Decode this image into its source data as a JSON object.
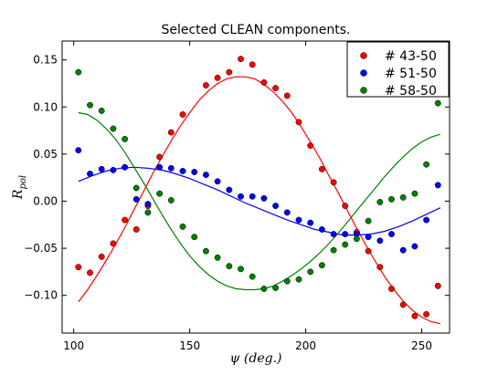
{
  "chart_data": {
    "type": "scatter",
    "title": "Selected CLEAN components.",
    "xlabel": "ψ (deg.)",
    "ylabel_main": "R",
    "ylabel_sub": "pol",
    "xlim": [
      95,
      262
    ],
    "ylim": [
      -0.14,
      0.17
    ],
    "xticks": [
      100,
      150,
      200,
      250
    ],
    "xtick_labels": [
      "100",
      "150",
      "200",
      "250"
    ],
    "yticks": [
      -0.1,
      -0.05,
      0.0,
      0.05,
      0.1,
      0.15
    ],
    "ytick_labels": [
      "−0.10",
      "−0.05",
      "0.00",
      "0.05",
      "0.10",
      "0.15"
    ],
    "legend_position": "top-right",
    "grid": false,
    "series": [
      {
        "name": "# 43-50",
        "color": "#ff0000",
        "points": [
          [
            102,
            -0.07
          ],
          [
            107,
            -0.076
          ],
          [
            112,
            -0.059
          ],
          [
            117,
            -0.045
          ],
          [
            122,
            -0.02
          ],
          [
            127,
            -0.03
          ],
          [
            132,
            -0.005
          ],
          [
            137,
            0.047
          ],
          [
            142,
            0.073
          ],
          [
            147,
            0.092
          ],
          [
            157,
            0.123
          ],
          [
            162,
            0.131
          ],
          [
            167,
            0.137
          ],
          [
            172,
            0.151
          ],
          [
            177,
            0.145
          ],
          [
            182,
            0.126
          ],
          [
            187,
            0.12
          ],
          [
            192,
            0.112
          ],
          [
            197,
            0.084
          ],
          [
            202,
            0.059
          ],
          [
            207,
            0.034
          ],
          [
            212,
            0.02
          ],
          [
            217,
            -0.005
          ],
          [
            222,
            -0.033
          ],
          [
            227,
            -0.053
          ],
          [
            232,
            -0.07
          ],
          [
            237,
            -0.093
          ],
          [
            242,
            -0.11
          ],
          [
            247,
            -0.122
          ],
          [
            252,
            -0.12
          ],
          [
            257,
            -0.09
          ]
        ],
        "fit": [
          [
            102,
            -0.107
          ],
          [
            106,
            -0.094
          ],
          [
            110,
            -0.079
          ],
          [
            114,
            -0.063
          ],
          [
            118,
            -0.046
          ],
          [
            122,
            -0.028
          ],
          [
            126,
            -0.009
          ],
          [
            130,
            0.01
          ],
          [
            134,
            0.029
          ],
          [
            138,
            0.047
          ],
          [
            142,
            0.064
          ],
          [
            146,
            0.08
          ],
          [
            150,
            0.094
          ],
          [
            154,
            0.107
          ],
          [
            158,
            0.117
          ],
          [
            162,
            0.125
          ],
          [
            166,
            0.13
          ],
          [
            170,
            0.132
          ],
          [
            174,
            0.132
          ],
          [
            178,
            0.13
          ],
          [
            182,
            0.124
          ],
          [
            186,
            0.116
          ],
          [
            190,
            0.106
          ],
          [
            194,
            0.094
          ],
          [
            198,
            0.079
          ],
          [
            202,
            0.063
          ],
          [
            206,
            0.046
          ],
          [
            210,
            0.027
          ],
          [
            214,
            0.009
          ],
          [
            218,
            -0.01
          ],
          [
            222,
            -0.029
          ],
          [
            226,
            -0.047
          ],
          [
            230,
            -0.064
          ],
          [
            234,
            -0.08
          ],
          [
            238,
            -0.094
          ],
          [
            242,
            -0.106
          ],
          [
            246,
            -0.116
          ],
          [
            250,
            -0.123
          ],
          [
            254,
            -0.128
          ],
          [
            258,
            -0.13
          ]
        ]
      },
      {
        "name": "# 51-50",
        "color": "#0000ff",
        "points": [
          [
            102,
            0.054
          ],
          [
            107,
            0.029
          ],
          [
            112,
            0.034
          ],
          [
            117,
            0.033
          ],
          [
            122,
            0.036
          ],
          [
            127,
            0.002
          ],
          [
            132,
            -0.003
          ],
          [
            137,
            0.036
          ],
          [
            142,
            0.035
          ],
          [
            147,
            0.032
          ],
          [
            152,
            0.031
          ],
          [
            157,
            0.028
          ],
          [
            162,
            0.021
          ],
          [
            167,
            0.012
          ],
          [
            172,
            0.005
          ],
          [
            177,
            0.005
          ],
          [
            182,
            0.003
          ],
          [
            187,
            -0.005
          ],
          [
            192,
            -0.012
          ],
          [
            197,
            -0.02
          ],
          [
            202,
            -0.023
          ],
          [
            207,
            -0.03
          ],
          [
            212,
            -0.035
          ],
          [
            217,
            -0.035
          ],
          [
            222,
            -0.035
          ],
          [
            227,
            -0.038
          ],
          [
            232,
            -0.042
          ],
          [
            237,
            -0.035
          ],
          [
            242,
            -0.052
          ],
          [
            247,
            -0.048
          ],
          [
            252,
            -0.02
          ],
          [
            257,
            0.017
          ]
        ],
        "fit": [
          [
            102,
            0.021
          ],
          [
            108,
            0.027
          ],
          [
            114,
            0.032
          ],
          [
            120,
            0.035
          ],
          [
            126,
            0.036
          ],
          [
            132,
            0.035
          ],
          [
            138,
            0.033
          ],
          [
            144,
            0.029
          ],
          [
            150,
            0.024
          ],
          [
            156,
            0.018
          ],
          [
            162,
            0.012
          ],
          [
            168,
            0.005
          ],
          [
            174,
            -0.002
          ],
          [
            180,
            -0.008
          ],
          [
            186,
            -0.014
          ],
          [
            192,
            -0.02
          ],
          [
            198,
            -0.025
          ],
          [
            204,
            -0.03
          ],
          [
            210,
            -0.033
          ],
          [
            216,
            -0.036
          ],
          [
            222,
            -0.036
          ],
          [
            228,
            -0.035
          ],
          [
            234,
            -0.032
          ],
          [
            240,
            -0.027
          ],
          [
            246,
            -0.021
          ],
          [
            252,
            -0.014
          ],
          [
            258,
            -0.007
          ]
        ]
      },
      {
        "name": "# 58-50",
        "color": "#008000",
        "points": [
          [
            102,
            0.137
          ],
          [
            107,
            0.102
          ],
          [
            112,
            0.096
          ],
          [
            117,
            0.077
          ],
          [
            122,
            0.066
          ],
          [
            127,
            0.014
          ],
          [
            132,
            -0.012
          ],
          [
            137,
            0.008
          ],
          [
            142,
            0.001
          ],
          [
            147,
            -0.027
          ],
          [
            152,
            -0.038
          ],
          [
            157,
            -0.053
          ],
          [
            162,
            -0.06
          ],
          [
            167,
            -0.069
          ],
          [
            172,
            -0.072
          ],
          [
            177,
            -0.08
          ],
          [
            182,
            -0.093
          ],
          [
            187,
            -0.092
          ],
          [
            192,
            -0.085
          ],
          [
            197,
            -0.083
          ],
          [
            202,
            -0.075
          ],
          [
            207,
            -0.068
          ],
          [
            212,
            -0.052
          ],
          [
            217,
            -0.046
          ],
          [
            222,
            -0.04
          ],
          [
            227,
            -0.021
          ],
          [
            232,
            -0.001
          ],
          [
            237,
            0.002
          ],
          [
            242,
            0.004
          ],
          [
            247,
            0.008
          ],
          [
            252,
            0.039
          ],
          [
            257,
            0.104
          ]
        ],
        "fit": [
          [
            102,
            0.094
          ],
          [
            106,
            0.092
          ],
          [
            110,
            0.086
          ],
          [
            114,
            0.077
          ],
          [
            118,
            0.066
          ],
          [
            122,
            0.052
          ],
          [
            126,
            0.036
          ],
          [
            130,
            0.02
          ],
          [
            134,
            0.003
          ],
          [
            138,
            -0.014
          ],
          [
            142,
            -0.03
          ],
          [
            146,
            -0.045
          ],
          [
            150,
            -0.058
          ],
          [
            154,
            -0.069
          ],
          [
            158,
            -0.078
          ],
          [
            162,
            -0.085
          ],
          [
            166,
            -0.09
          ],
          [
            170,
            -0.093
          ],
          [
            174,
            -0.094
          ],
          [
            178,
            -0.094
          ],
          [
            182,
            -0.093
          ],
          [
            186,
            -0.09
          ],
          [
            190,
            -0.085
          ],
          [
            194,
            -0.079
          ],
          [
            198,
            -0.072
          ],
          [
            202,
            -0.064
          ],
          [
            206,
            -0.055
          ],
          [
            210,
            -0.045
          ],
          [
            214,
            -0.034
          ],
          [
            218,
            -0.022
          ],
          [
            222,
            -0.01
          ],
          [
            226,
            0.002
          ],
          [
            230,
            0.014
          ],
          [
            234,
            0.026
          ],
          [
            238,
            0.037
          ],
          [
            242,
            0.047
          ],
          [
            246,
            0.056
          ],
          [
            250,
            0.063
          ],
          [
            254,
            0.068
          ],
          [
            258,
            0.071
          ]
        ]
      }
    ]
  }
}
